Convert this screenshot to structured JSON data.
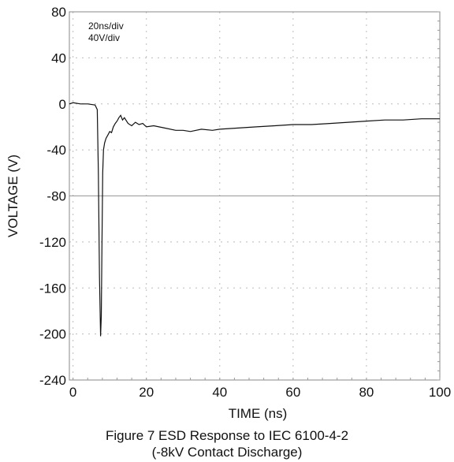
{
  "chart_data": {
    "type": "line",
    "xlabel": "TIME (ns)",
    "ylabel": "VOLTAGE (V)",
    "xlim": [
      -1,
      100
    ],
    "ylim": [
      -240,
      80
    ],
    "xticks": [
      0,
      20,
      40,
      60,
      80,
      100
    ],
    "yticks": [
      80,
      40,
      0,
      -40,
      -80,
      -120,
      -160,
      -200,
      -240
    ],
    "grid": "dotted",
    "annotations": [
      "20ns/div",
      "40V/div"
    ],
    "series": [
      {
        "x": [
          -1,
          0,
          2,
          4,
          6,
          6.6,
          6.9,
          7.2,
          7.5,
          7.7,
          7.9,
          8.1,
          8.3,
          8.6,
          9,
          9.5,
          10,
          10.5,
          11,
          11.5,
          12,
          12.5,
          13,
          13.5,
          14,
          15,
          16,
          17,
          18,
          19,
          20,
          22,
          25,
          28,
          30,
          32,
          35,
          38,
          40,
          45,
          50,
          55,
          60,
          65,
          70,
          75,
          80,
          85,
          90,
          95,
          100
        ],
        "y": [
          0,
          1,
          0,
          0,
          -1,
          -5,
          -60,
          -150,
          -202,
          -185,
          -120,
          -60,
          -40,
          -34,
          -30,
          -27,
          -24,
          -25,
          -20,
          -17,
          -15,
          -12,
          -10,
          -14,
          -12,
          -17,
          -19,
          -16,
          -18,
          -17,
          -20,
          -19,
          -21,
          -23,
          -23,
          -24,
          -22,
          -23,
          -22,
          -21,
          -20,
          -19,
          -18,
          -18,
          -17,
          -16,
          -15,
          -14,
          -14,
          -13,
          -13
        ]
      }
    ]
  },
  "caption": {
    "line1": "Figure 7 ESD Response to IEC 6100-4-2",
    "line2": "(-8kV Contact Discharge)"
  }
}
